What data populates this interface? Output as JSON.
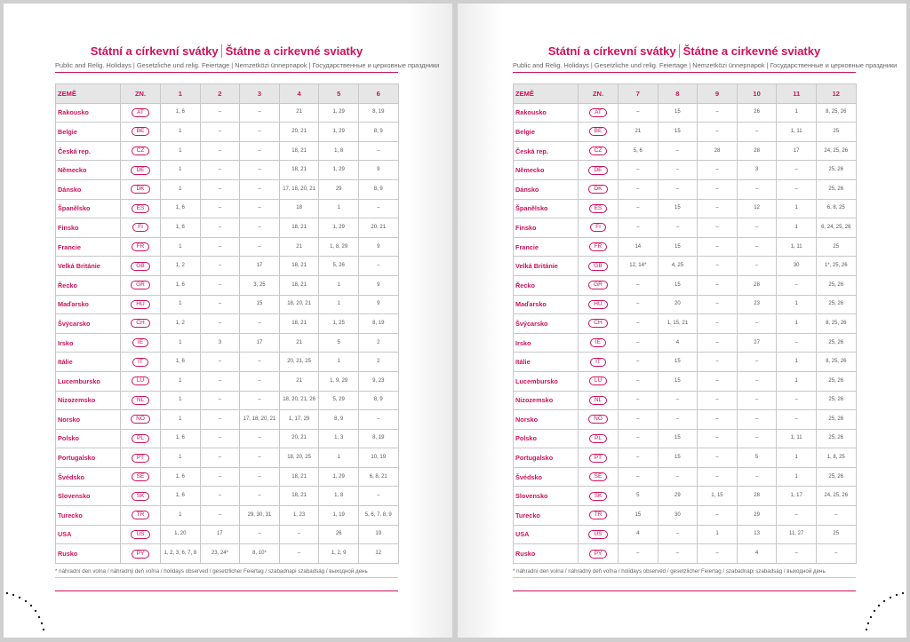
{
  "pages": [
    {
      "title_cz": "Státní a církevní svátky",
      "title_sk": "Štátne a cirkevné sviatky",
      "subtitle": "Public and Relig. Holidays | Gesetzliche und relig. Feiertage | Nemzetközi ünnepnapok | Государственные и церковные праздники",
      "header": [
        "ZEMĚ",
        "ZN.",
        "1",
        "2",
        "3",
        "4",
        "5",
        "6"
      ],
      "rows": [
        [
          "Rakousko",
          "AT",
          "1, 6",
          "–",
          "–",
          "21",
          "1, 29",
          "8, 19"
        ],
        [
          "Belgie",
          "BE",
          "1",
          "–",
          "–",
          "20, 21",
          "1, 29",
          "8, 9"
        ],
        [
          "Česká rep.",
          "CZ",
          "1",
          "–",
          "–",
          "18, 21",
          "1, 8",
          "–"
        ],
        [
          "Německo",
          "DE",
          "1",
          "–",
          "–",
          "18, 21",
          "1, 29",
          "9"
        ],
        [
          "Dánsko",
          "DK",
          "1",
          "–",
          "–",
          "17, 18, 20, 21",
          "29",
          "8, 9"
        ],
        [
          "Španělsko",
          "ES",
          "1, 6",
          "–",
          "–",
          "18",
          "1",
          "–"
        ],
        [
          "Finsko",
          "FI",
          "1, 6",
          "–",
          "–",
          "18, 21",
          "1, 29",
          "20, 21"
        ],
        [
          "Francie",
          "FR",
          "1",
          "–",
          "–",
          "21",
          "1, 8, 29",
          "9"
        ],
        [
          "Velká Británie",
          "GB",
          "1, 2",
          "–",
          "17",
          "18, 21",
          "5, 26",
          "–"
        ],
        [
          "Řecko",
          "GR",
          "1, 6",
          "–",
          "3, 25",
          "18, 21",
          "1",
          "9"
        ],
        [
          "Maďarsko",
          "HU",
          "1",
          "–",
          "15",
          "18, 20, 21",
          "1",
          "9"
        ],
        [
          "Švýcarsko",
          "CH",
          "1, 2",
          "–",
          "–",
          "18, 21",
          "1, 25",
          "8, 19"
        ],
        [
          "Irsko",
          "IE",
          "1",
          "3",
          "17",
          "21",
          "5",
          "2"
        ],
        [
          "Itálie",
          "IT",
          "1, 6",
          "–",
          "–",
          "20, 21, 25",
          "1",
          "2"
        ],
        [
          "Lucembursko",
          "LU",
          "1",
          "–",
          "–",
          "21",
          "1, 9, 29",
          "9, 23"
        ],
        [
          "Nizozemsko",
          "NL",
          "1",
          "–",
          "–",
          "18, 20, 21, 26",
          "5, 29",
          "8, 9"
        ],
        [
          "Norsko",
          "NO",
          "1",
          "–",
          "17, 18, 20, 21",
          "1, 17, 29",
          "8, 9",
          "–"
        ],
        [
          "Polsko",
          "PL",
          "1, 6",
          "–",
          "–",
          "20, 21",
          "1, 3",
          "8, 19"
        ],
        [
          "Portugalsko",
          "PT",
          "1",
          "–",
          "–",
          "18, 20, 25",
          "1",
          "10, 19"
        ],
        [
          "Švédsko",
          "SE",
          "1, 6",
          "–",
          "–",
          "18, 21",
          "1, 29",
          "6, 8, 21"
        ],
        [
          "Slovensko",
          "SK",
          "1, 6",
          "–",
          "–",
          "18, 21",
          "1, 8",
          "–"
        ],
        [
          "Turecko",
          "TR",
          "1",
          "–",
          "29, 30, 31",
          "1, 23",
          "1, 19",
          "5, 6, 7, 8, 9"
        ],
        [
          "USA",
          "US",
          "1, 20",
          "17",
          "–",
          "–",
          "26",
          "19"
        ],
        [
          "Rusko",
          "PY",
          "1, 2, 3, 6, 7, 8",
          "23, 24*",
          "8, 10*",
          "–",
          "1, 2, 9",
          "12"
        ]
      ],
      "footnote": "* náhradní den volna / náhradný deň voľna / holidays observed / gesetzlicher Feiertag / szabadnapi szabadság / выходной день"
    },
    {
      "title_cz": "Státní a církevní svátky",
      "title_sk": "Štátne a cirkevné sviatky",
      "subtitle": "Public and Relig. Holidays | Gesetzliche und relig. Feiertage | Nemzetközi ünnepnapok | Государственные и церковные праздники",
      "header": [
        "ZEMĚ",
        "ZN.",
        "7",
        "8",
        "9",
        "10",
        "11",
        "12"
      ],
      "rows": [
        [
          "Rakousko",
          "AT",
          "–",
          "15",
          "–",
          "26",
          "1",
          "8, 25, 26"
        ],
        [
          "Belgie",
          "BE",
          "21",
          "15",
          "–",
          "–",
          "1, 11",
          "25"
        ],
        [
          "Česká rep.",
          "CZ",
          "5, 6",
          "–",
          "28",
          "28",
          "17",
          "24, 25, 26"
        ],
        [
          "Německo",
          "DE",
          "–",
          "–",
          "–",
          "3",
          "–",
          "25, 26"
        ],
        [
          "Dánsko",
          "DK",
          "–",
          "–",
          "–",
          "–",
          "–",
          "25, 26"
        ],
        [
          "Španělsko",
          "ES",
          "–",
          "15",
          "–",
          "12",
          "1",
          "6, 8, 25"
        ],
        [
          "Finsko",
          "FI",
          "–",
          "–",
          "–",
          "–",
          "1",
          "6, 24, 25, 26"
        ],
        [
          "Francie",
          "FR",
          "14",
          "15",
          "–",
          "–",
          "1, 11",
          "25"
        ],
        [
          "Velká Británie",
          "GB",
          "12, 14*",
          "4, 25",
          "–",
          "–",
          "30",
          "1*, 25, 26"
        ],
        [
          "Řecko",
          "GR",
          "–",
          "15",
          "–",
          "28",
          "–",
          "25, 26"
        ],
        [
          "Maďarsko",
          "HU",
          "–",
          "20",
          "–",
          "23",
          "1",
          "25, 26"
        ],
        [
          "Švýcarsko",
          "CH",
          "–",
          "1, 15, 21",
          "–",
          "–",
          "1",
          "8, 25, 26"
        ],
        [
          "Irsko",
          "IE",
          "–",
          "4",
          "–",
          "27",
          "–",
          "25, 26"
        ],
        [
          "Itálie",
          "IT",
          "–",
          "15",
          "–",
          "–",
          "1",
          "8, 25, 26"
        ],
        [
          "Lucembursko",
          "LU",
          "–",
          "15",
          "–",
          "–",
          "1",
          "25, 26"
        ],
        [
          "Nizozemsko",
          "NL",
          "–",
          "–",
          "–",
          "–",
          "–",
          "25, 26"
        ],
        [
          "Norsko",
          "NO",
          "–",
          "–",
          "–",
          "–",
          "–",
          "25, 26"
        ],
        [
          "Polsko",
          "PL",
          "–",
          "15",
          "–",
          "–",
          "1, 11",
          "25, 26"
        ],
        [
          "Portugalsko",
          "PT",
          "–",
          "15",
          "–",
          "5",
          "1",
          "1, 8, 25"
        ],
        [
          "Švédsko",
          "SE",
          "–",
          "–",
          "–",
          "–",
          "1",
          "25, 26"
        ],
        [
          "Slovensko",
          "SK",
          "5",
          "29",
          "1, 15",
          "28",
          "1, 17",
          "24, 25, 26"
        ],
        [
          "Turecko",
          "TR",
          "15",
          "30",
          "–",
          "29",
          "–",
          "–"
        ],
        [
          "USA",
          "US",
          "4",
          "–",
          "1",
          "13",
          "11, 27",
          "25"
        ],
        [
          "Rusko",
          "PY",
          "–",
          "–",
          "–",
          "4",
          "–",
          "–"
        ]
      ],
      "footnote": "* náhradní den volna / náhradný deň voľna / holidays observed / gesetzlicher Feiertag / szabadnapi szabadság / выходной день"
    }
  ]
}
